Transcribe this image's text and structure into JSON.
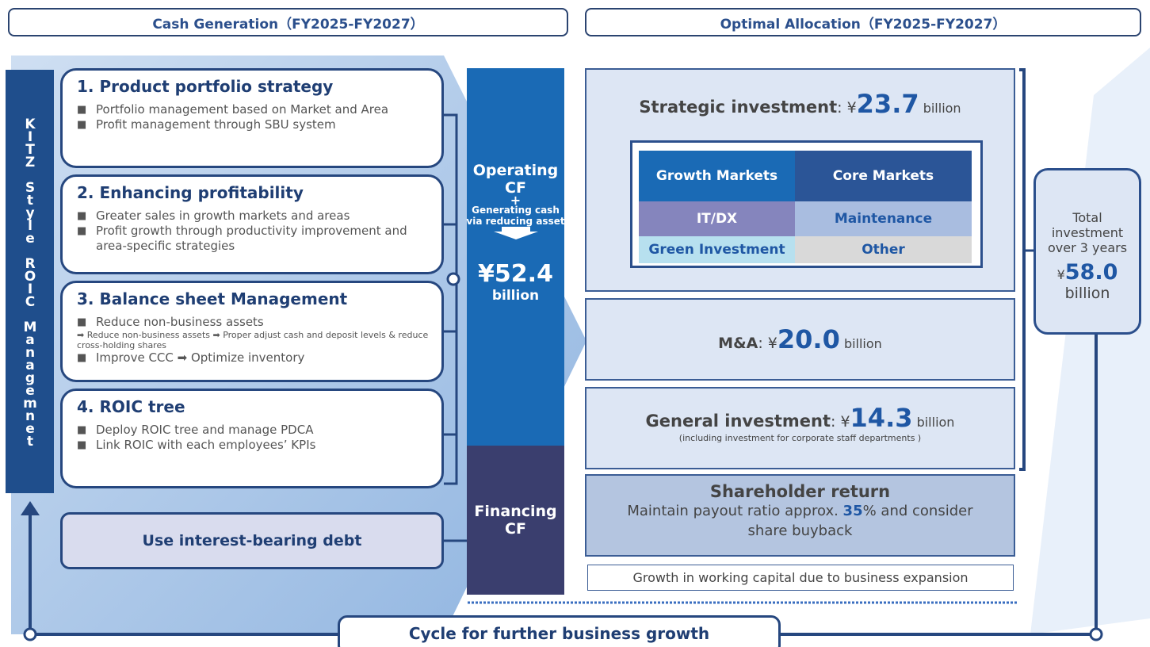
{
  "headers": {
    "left": "Cash Generation（FY2025-FY2027）",
    "right": "Optimal Allocation（FY2025-FY2027）"
  },
  "side_label": "KITZ Style ROIC Managemnet",
  "strategies": [
    {
      "title": "1. Product portfolio strategy",
      "bullets": [
        "Portfolio management based on Market and Area",
        "Profit management through SBU system"
      ]
    },
    {
      "title": "2. Enhancing profitability",
      "bullets": [
        "Greater sales in growth markets and areas",
        "Profit growth through productivity improvement and area-specific strategies"
      ]
    },
    {
      "title": "3. Balance sheet Management",
      "bullets": [
        "Reduce non-business assets",
        "Improve CCC ➡ Optimize inventory"
      ],
      "note": "➡ Reduce non-business assets ➡ Proper adjust cash and deposit levels & reduce cross-holding shares"
    },
    {
      "title": "4. ROIC tree",
      "bullets": [
        "Deploy ROIC tree and manage PDCA",
        "Link ROIC with each employees’ KPIs"
      ]
    }
  ],
  "debt": "Use interest-bearing debt",
  "operating": {
    "title": "Operating CF",
    "plus": "+",
    "sub": "Generating cash via reducing asset",
    "amount": "¥52.4",
    "unit": "billion"
  },
  "financing": "Financing CF",
  "strategic": {
    "label": "Strategic investment",
    "prefix": ": ¥",
    "value": "23.7",
    "unit": "billion",
    "grid": [
      [
        "Growth Markets",
        "Core Markets"
      ],
      [
        "IT/DX",
        "Maintenance"
      ],
      [
        "Green Investment",
        "Other"
      ]
    ]
  },
  "ma": {
    "label": "M&A",
    "prefix": ": ¥",
    "value": "20.0",
    "unit": "billion"
  },
  "general": {
    "label": "General investment",
    "prefix": ": ¥",
    "value": "14.3",
    "unit": "billion",
    "note": "(including investment for corporate staff departments )"
  },
  "shareholder": {
    "title": "Shareholder return",
    "text_before": "Maintain payout ratio approx. ",
    "value": "35",
    "text_after": "% and consider share buyback"
  },
  "working_capital": "Growth in working capital due to business expansion",
  "total": {
    "label": "Total investment over 3 years",
    "prefix": "¥",
    "value": "58.0",
    "unit": "billion"
  },
  "cycle": "Cycle for further business growth"
}
